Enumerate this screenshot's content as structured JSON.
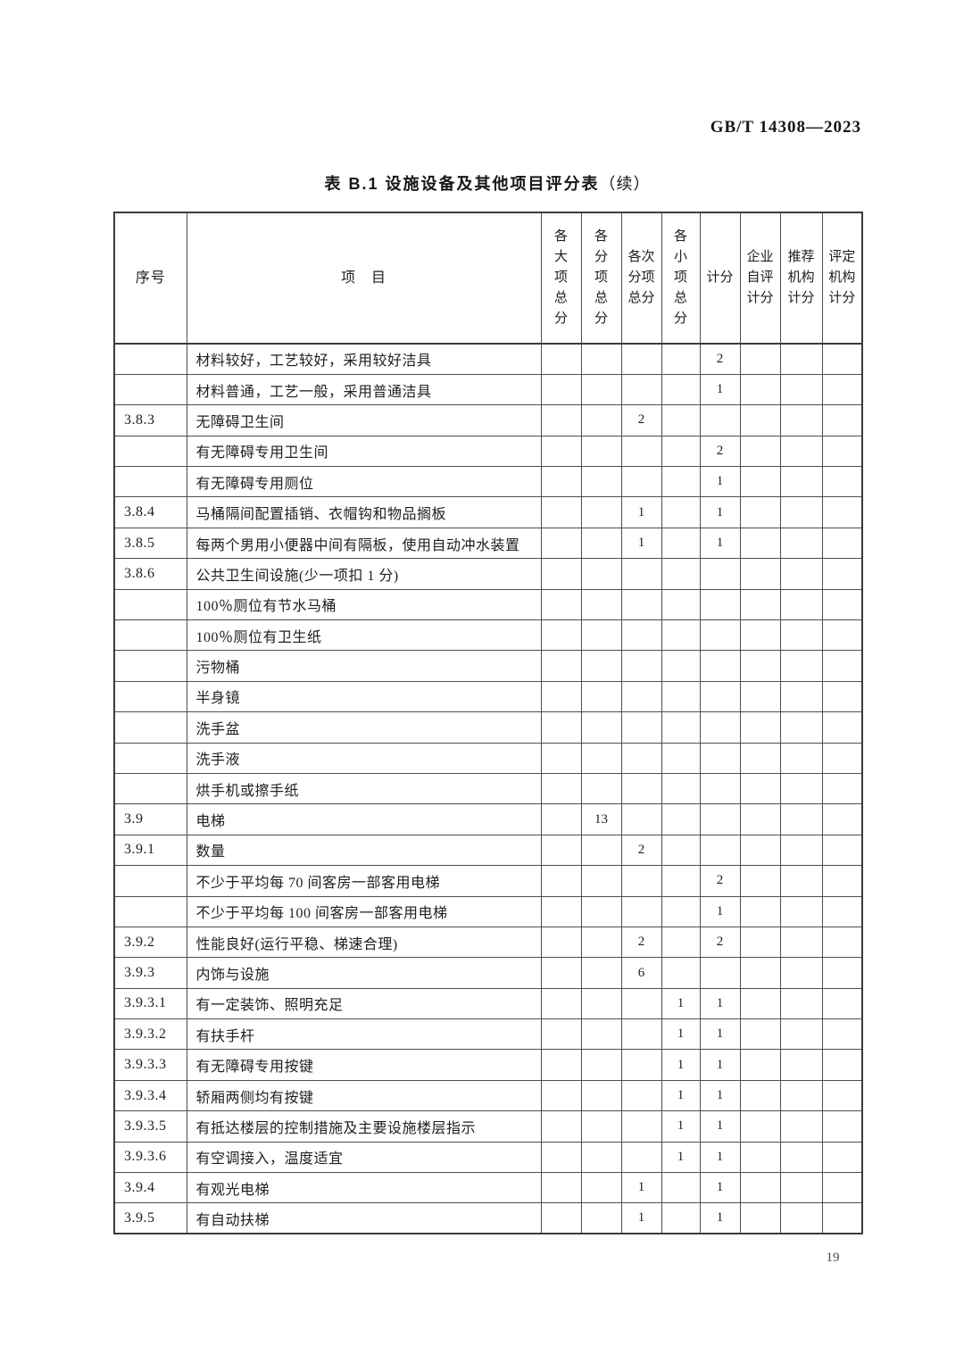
{
  "page": {
    "doc_number": "GB/T 14308—2023",
    "page_number": "19"
  },
  "table": {
    "title_main": "表 B.1  设施设备及其他项目评分表",
    "title_suffix": "（续）",
    "columns": [
      {
        "key": "xuhao",
        "label": "序号"
      },
      {
        "key": "xiangmu",
        "label": "项　目"
      },
      {
        "key": "dxzf",
        "label": "各大项总分",
        "lines": [
          "各",
          "大",
          "项",
          "总",
          "分"
        ]
      },
      {
        "key": "fxzf",
        "label": "各分项总分",
        "lines": [
          "各",
          "分",
          "项",
          "总",
          "分"
        ]
      },
      {
        "key": "cfxzf",
        "label": "各次分项总分",
        "lines": [
          "各次",
          "分项",
          "总分"
        ]
      },
      {
        "key": "xxzf",
        "label": "各小项总分",
        "lines": [
          "各",
          "小",
          "项",
          "总",
          "分"
        ]
      },
      {
        "key": "jifen",
        "label": "计分",
        "lines": [
          "计分"
        ]
      },
      {
        "key": "qyzp",
        "label": "企业自评计分",
        "lines": [
          "企业",
          "自评",
          "计分"
        ]
      },
      {
        "key": "tjjg",
        "label": "推荐机构计分",
        "lines": [
          "推荐",
          "机构",
          "计分"
        ]
      },
      {
        "key": "pdjg",
        "label": "评定机构计分",
        "lines": [
          "评定",
          "机构",
          "计分"
        ]
      }
    ],
    "rows": [
      [
        "",
        "材料较好，工艺较好，采用较好洁具",
        "",
        "",
        "",
        "",
        "2",
        "",
        "",
        ""
      ],
      [
        "",
        "材料普通，工艺一般，采用普通洁具",
        "",
        "",
        "",
        "",
        "1",
        "",
        "",
        ""
      ],
      [
        "3.8.3",
        "无障碍卫生间",
        "",
        "",
        "2",
        "",
        "",
        "",
        "",
        ""
      ],
      [
        "",
        "有无障碍专用卫生间",
        "",
        "",
        "",
        "",
        "2",
        "",
        "",
        ""
      ],
      [
        "",
        "有无障碍专用厕位",
        "",
        "",
        "",
        "",
        "1",
        "",
        "",
        ""
      ],
      [
        "3.8.4",
        "马桶隔间配置插销、衣帽钩和物品搁板",
        "",
        "",
        "1",
        "",
        "1",
        "",
        "",
        ""
      ],
      [
        "3.8.5",
        "每两个男用小便器中间有隔板，使用自动冲水装置",
        "",
        "",
        "1",
        "",
        "1",
        "",
        "",
        ""
      ],
      [
        "3.8.6",
        "公共卫生间设施(少一项扣 1 分)",
        "",
        "",
        "",
        "",
        "",
        "",
        "",
        ""
      ],
      [
        "",
        "100％厕位有节水马桶",
        "",
        "",
        "",
        "",
        "",
        "",
        "",
        ""
      ],
      [
        "",
        "100％厕位有卫生纸",
        "",
        "",
        "",
        "",
        "",
        "",
        "",
        ""
      ],
      [
        "",
        "污物桶",
        "",
        "",
        "",
        "",
        "",
        "",
        "",
        ""
      ],
      [
        "",
        "半身镜",
        "",
        "",
        "",
        "",
        "",
        "",
        "",
        ""
      ],
      [
        "",
        "洗手盆",
        "",
        "",
        "",
        "",
        "",
        "",
        "",
        ""
      ],
      [
        "",
        "洗手液",
        "",
        "",
        "",
        "",
        "",
        "",
        "",
        ""
      ],
      [
        "",
        "烘手机或擦手纸",
        "",
        "",
        "",
        "",
        "",
        "",
        "",
        ""
      ],
      [
        "3.9",
        "电梯",
        "",
        "13",
        "",
        "",
        "",
        "",
        "",
        ""
      ],
      [
        "3.9.1",
        "数量",
        "",
        "",
        "2",
        "",
        "",
        "",
        "",
        ""
      ],
      [
        "",
        "不少于平均每 70 间客房一部客用电梯",
        "",
        "",
        "",
        "",
        "2",
        "",
        "",
        ""
      ],
      [
        "",
        "不少于平均每 100 间客房一部客用电梯",
        "",
        "",
        "",
        "",
        "1",
        "",
        "",
        ""
      ],
      [
        "3.9.2",
        "性能良好(运行平稳、梯速合理)",
        "",
        "",
        "2",
        "",
        "2",
        "",
        "",
        ""
      ],
      [
        "3.9.3",
        "内饰与设施",
        "",
        "",
        "6",
        "",
        "",
        "",
        "",
        ""
      ],
      [
        "3.9.3.1",
        "有一定装饰、照明充足",
        "",
        "",
        "",
        "1",
        "1",
        "",
        "",
        ""
      ],
      [
        "3.9.3.2",
        "有扶手杆",
        "",
        "",
        "",
        "1",
        "1",
        "",
        "",
        ""
      ],
      [
        "3.9.3.3",
        "有无障碍专用按键",
        "",
        "",
        "",
        "1",
        "1",
        "",
        "",
        ""
      ],
      [
        "3.9.3.4",
        "轿厢两侧均有按键",
        "",
        "",
        "",
        "1",
        "1",
        "",
        "",
        ""
      ],
      [
        "3.9.3.5",
        "有抵达楼层的控制措施及主要设施楼层指示",
        "",
        "",
        "",
        "1",
        "1",
        "",
        "",
        ""
      ],
      [
        "3.9.3.6",
        "有空调接入，温度适宜",
        "",
        "",
        "",
        "1",
        "1",
        "",
        "",
        ""
      ],
      [
        "3.9.4",
        "有观光电梯",
        "",
        "",
        "1",
        "",
        "1",
        "",
        "",
        ""
      ],
      [
        "3.9.5",
        "有自动扶梯",
        "",
        "",
        "1",
        "",
        "1",
        "",
        "",
        ""
      ]
    ]
  }
}
